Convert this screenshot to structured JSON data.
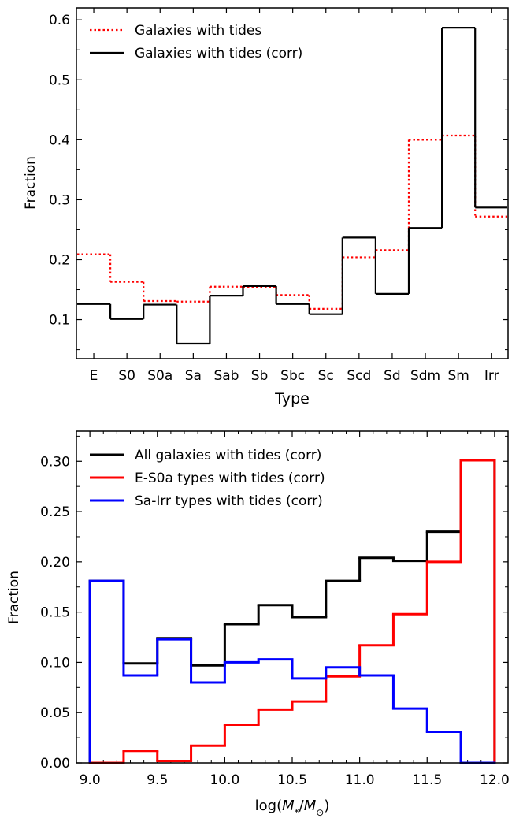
{
  "chart_data": [
    {
      "type": "step",
      "title": "",
      "xlabel": "Type",
      "ylabel": "Fraction",
      "categories": [
        "E",
        "S0",
        "S0a",
        "Sa",
        "Sab",
        "Sb",
        "Sbc",
        "Sc",
        "Scd",
        "Sd",
        "Sdm",
        "Sm",
        "Irr"
      ],
      "ylim": [
        0.035,
        0.62
      ],
      "yticks": [
        0.1,
        0.2,
        0.3,
        0.4,
        0.5,
        0.6
      ],
      "ytick_labels": [
        "0.1",
        "0.2",
        "0.3",
        "0.4",
        "0.5",
        "0.6"
      ],
      "legend_position": "top-left",
      "series": [
        {
          "name": "Galaxies with tides",
          "color": "#ff0000",
          "style": "dotted",
          "values": [
            0.209,
            0.163,
            0.131,
            0.13,
            0.155,
            0.154,
            0.141,
            0.118,
            0.204,
            0.216,
            0.4,
            0.407,
            0.272
          ]
        },
        {
          "name": "Galaxies with tides (corr)",
          "color": "#000000",
          "style": "solid",
          "values": [
            0.126,
            0.101,
            0.125,
            0.06,
            0.14,
            0.156,
            0.126,
            0.109,
            0.237,
            0.143,
            0.253,
            0.587,
            0.287
          ]
        }
      ]
    },
    {
      "type": "step",
      "title": "",
      "xlabel": "log(M*/M⊙)",
      "xlabel_parts": {
        "prefix": "log(",
        "m": "M",
        "sub": "*",
        "slash": "/",
        "m2": "M",
        "sub2": "⊙",
        "suffix": ")"
      },
      "ylabel": "Fraction",
      "bin_edges": [
        9.0,
        9.25,
        9.5,
        9.75,
        10.0,
        10.25,
        10.5,
        10.75,
        11.0,
        11.25,
        11.5,
        11.75,
        12.0
      ],
      "xlim": [
        8.9,
        12.1
      ],
      "xticks": [
        9.0,
        9.5,
        10.0,
        10.5,
        11.0,
        11.5,
        12.0
      ],
      "xtick_labels": [
        "9.0",
        "9.5",
        "10.0",
        "10.5",
        "11.0",
        "11.5",
        "12.0"
      ],
      "ylim": [
        0.0,
        0.33
      ],
      "yticks": [
        0.0,
        0.05,
        0.1,
        0.15,
        0.2,
        0.25,
        0.3
      ],
      "ytick_labels": [
        "0.00",
        "0.05",
        "0.10",
        "0.15",
        "0.20",
        "0.25",
        "0.30"
      ],
      "legend_position": "top-left",
      "series": [
        {
          "name": "All galaxies with tides (corr)",
          "color": "#000000",
          "values": [
            0.181,
            0.099,
            0.124,
            0.097,
            0.138,
            0.157,
            0.145,
            0.181,
            0.204,
            0.201,
            0.23,
            0.301
          ]
        },
        {
          "name": "E-S0a types with tides (corr)",
          "color": "#ff0000",
          "values": [
            0.0,
            0.012,
            0.002,
            0.017,
            0.038,
            0.053,
            0.061,
            0.086,
            0.117,
            0.148,
            0.2,
            0.301
          ]
        },
        {
          "name": "Sa-Irr types with tides (corr)",
          "color": "#0000ff",
          "values": [
            0.181,
            0.087,
            0.123,
            0.08,
            0.1,
            0.103,
            0.084,
            0.095,
            0.087,
            0.054,
            0.031,
            0.0
          ]
        }
      ]
    }
  ]
}
